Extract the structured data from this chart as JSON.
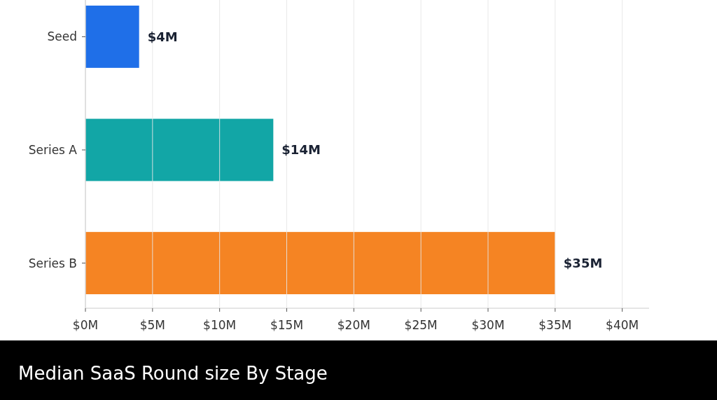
{
  "chart_data": {
    "type": "bar",
    "orientation": "horizontal",
    "title": "Median SaaS Round size By Stage",
    "categories": [
      "Seed",
      "Series A",
      "Series B"
    ],
    "values": [
      4,
      14,
      35
    ],
    "colors": [
      "#1f6fe8",
      "#12a6a6",
      "#f58423"
    ],
    "value_labels": [
      "$4M",
      "$14M",
      "$35M"
    ],
    "xlim": [
      0,
      42
    ],
    "xticks": [
      {
        "value": 0,
        "label": "$0M"
      },
      {
        "value": 5,
        "label": "$5M"
      },
      {
        "value": 10,
        "label": "$10M"
      },
      {
        "value": 15,
        "label": "$15M"
      },
      {
        "value": 20,
        "label": "$20M"
      },
      {
        "value": 25,
        "label": "$25M"
      },
      {
        "value": 30,
        "label": "$30M"
      },
      {
        "value": 35,
        "label": "$35M"
      },
      {
        "value": 40,
        "label": "$40M"
      }
    ],
    "grid": "x"
  }
}
